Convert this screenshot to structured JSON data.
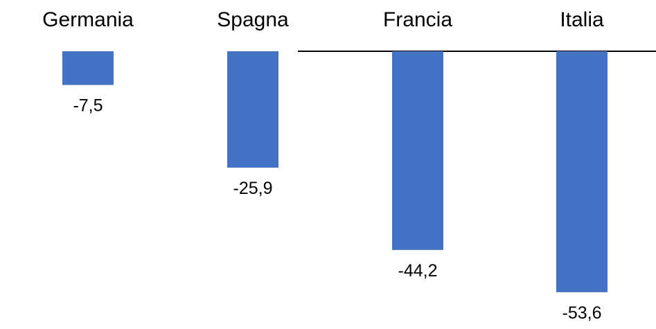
{
  "chart_data": {
    "type": "bar",
    "title": "",
    "xlabel": "",
    "ylabel": "",
    "categories": [
      "Germania",
      "Spagna",
      "Francia",
      "Italia"
    ],
    "values": [
      -7.5,
      -25.9,
      -44.2,
      -53.6
    ],
    "data_labels": [
      "-7,5",
      "-25,9",
      "-44,2",
      "-53,6"
    ],
    "ylim": [
      -60,
      0
    ],
    "category_axis_position": "top",
    "grid": false,
    "legend": "none",
    "bar_color": "#4472C4",
    "axis_color": "#000000"
  }
}
